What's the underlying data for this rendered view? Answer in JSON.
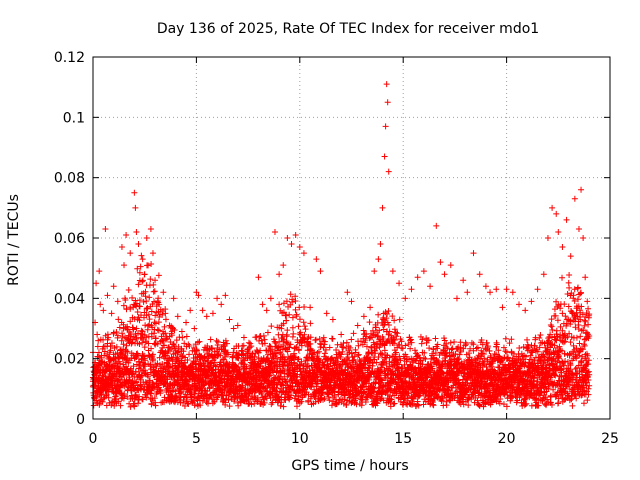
{
  "chart_data": {
    "type": "scatter",
    "title": "Day 136 of 2025, Rate Of TEC Index for receiver mdo1",
    "xlabel": "GPS time / hours",
    "ylabel": "ROTI / TECUs",
    "xlim": [
      0,
      25
    ],
    "ylim": [
      0,
      0.12
    ],
    "xticks": [
      0,
      5,
      10,
      15,
      20,
      25
    ],
    "xtick_labels": [
      "0",
      "5",
      "10",
      "15",
      "20",
      "25"
    ],
    "yticks": [
      0,
      0.02,
      0.04,
      0.06,
      0.08,
      0.1,
      0.12
    ],
    "ytick_labels": [
      "0",
      "0.02",
      "0.04",
      "0.06",
      "0.08",
      "0.1",
      "0.12"
    ],
    "grid": true,
    "marker": "plus",
    "color": "#ff0000",
    "series": [
      {
        "name": "ROTI",
        "x": [
          0.1,
          0.15,
          0.2,
          0.3,
          0.35,
          0.5,
          0.6,
          0.7,
          0.9,
          1.0,
          1.2,
          1.4,
          1.5,
          1.6,
          1.8,
          2.0,
          2.05,
          2.1,
          2.2,
          2.4,
          2.5,
          2.6,
          2.8,
          2.9,
          3.0,
          3.2,
          3.4,
          3.5,
          3.7,
          3.9,
          4.1,
          4.3,
          4.5,
          4.7,
          4.9,
          5.0,
          5.1,
          5.3,
          5.5,
          5.8,
          6.0,
          6.2,
          6.4,
          6.6,
          6.8,
          7.0,
          7.3,
          7.6,
          8.0,
          8.2,
          8.4,
          8.6,
          8.8,
          9.0,
          9.2,
          9.4,
          9.6,
          9.8,
          10.0,
          10.2,
          10.5,
          10.8,
          11.0,
          11.3,
          11.6,
          12.0,
          12.3,
          12.5,
          12.8,
          13.1,
          13.4,
          13.6,
          13.8,
          13.9,
          14.0,
          14.1,
          14.15,
          14.2,
          14.25,
          14.3,
          14.5,
          14.8,
          15.1,
          15.4,
          15.7,
          16.0,
          16.3,
          16.6,
          16.8,
          17.0,
          17.3,
          17.6,
          17.9,
          18.1,
          18.4,
          18.7,
          19.0,
          19.2,
          19.5,
          19.8,
          20.0,
          20.3,
          20.6,
          20.9,
          21.2,
          21.5,
          21.8,
          22.0,
          22.2,
          22.4,
          22.5,
          22.7,
          22.9,
          23.1,
          23.3,
          23.5,
          23.6,
          23.7,
          23.8,
          23.9
        ],
        "y": [
          0.032,
          0.045,
          0.028,
          0.049,
          0.038,
          0.036,
          0.063,
          0.041,
          0.035,
          0.044,
          0.039,
          0.057,
          0.051,
          0.061,
          0.055,
          0.075,
          0.07,
          0.062,
          0.058,
          0.053,
          0.048,
          0.06,
          0.063,
          0.055,
          0.046,
          0.038,
          0.042,
          0.035,
          0.031,
          0.04,
          0.034,
          0.029,
          0.032,
          0.036,
          0.03,
          0.042,
          0.041,
          0.036,
          0.034,
          0.035,
          0.04,
          0.038,
          0.041,
          0.033,
          0.03,
          0.031,
          0.027,
          0.025,
          0.047,
          0.038,
          0.036,
          0.04,
          0.062,
          0.048,
          0.051,
          0.06,
          0.058,
          0.061,
          0.057,
          0.055,
          0.037,
          0.053,
          0.049,
          0.035,
          0.033,
          0.028,
          0.042,
          0.039,
          0.031,
          0.034,
          0.037,
          0.049,
          0.053,
          0.058,
          0.07,
          0.087,
          0.097,
          0.111,
          0.105,
          0.082,
          0.049,
          0.045,
          0.04,
          0.043,
          0.047,
          0.049,
          0.044,
          0.064,
          0.052,
          0.048,
          0.051,
          0.04,
          0.046,
          0.042,
          0.055,
          0.048,
          0.044,
          0.042,
          0.043,
          0.037,
          0.043,
          0.042,
          0.038,
          0.036,
          0.039,
          0.043,
          0.048,
          0.06,
          0.07,
          0.068,
          0.062,
          0.057,
          0.066,
          0.054,
          0.073,
          0.063,
          0.076,
          0.06,
          0.047,
          0.039
        ]
      }
    ]
  }
}
